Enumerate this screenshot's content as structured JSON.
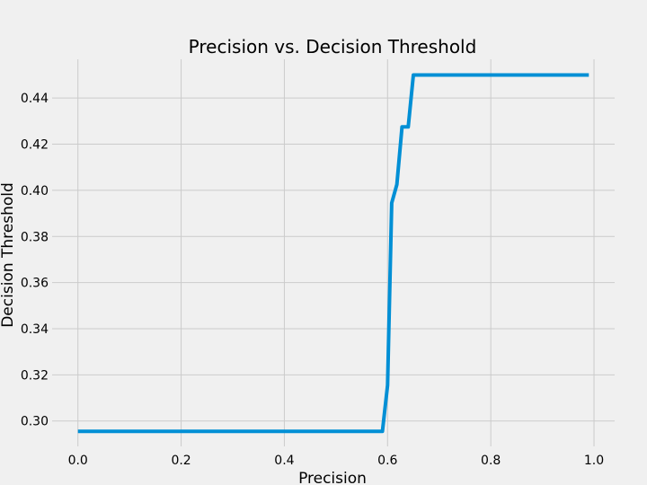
{
  "chart_data": {
    "type": "line",
    "title": "Precision vs. Decision Threshold",
    "xlabel": "Precision",
    "ylabel": "Decision Threshold",
    "xlim": [
      -0.05,
      1.04
    ],
    "ylim": [
      0.289,
      0.4568
    ],
    "grid": true,
    "x_ticks": [
      0.0,
      0.2,
      0.4,
      0.6,
      0.8,
      1.0
    ],
    "x_tick_labels": [
      "0.0",
      "0.2",
      "0.4",
      "0.6",
      "0.8",
      "1.0"
    ],
    "y_ticks": [
      0.3,
      0.32,
      0.34,
      0.36,
      0.38,
      0.4,
      0.42,
      0.44
    ],
    "y_tick_labels": [
      "0.30",
      "0.32",
      "0.34",
      "0.36",
      "0.38",
      "0.40",
      "0.42",
      "0.44"
    ],
    "line_color": "#008fd5",
    "background_color": "#f0f0f0",
    "grid_color": "#cbcbcb",
    "series": [
      {
        "x": [
          0.0,
          0.59,
          0.6,
          0.608,
          0.618,
          0.628,
          0.64,
          0.65,
          0.99
        ],
        "y": [
          0.2955,
          0.2955,
          0.3155,
          0.3945,
          0.4025,
          0.4275,
          0.4275,
          0.45,
          0.45
        ]
      }
    ]
  }
}
